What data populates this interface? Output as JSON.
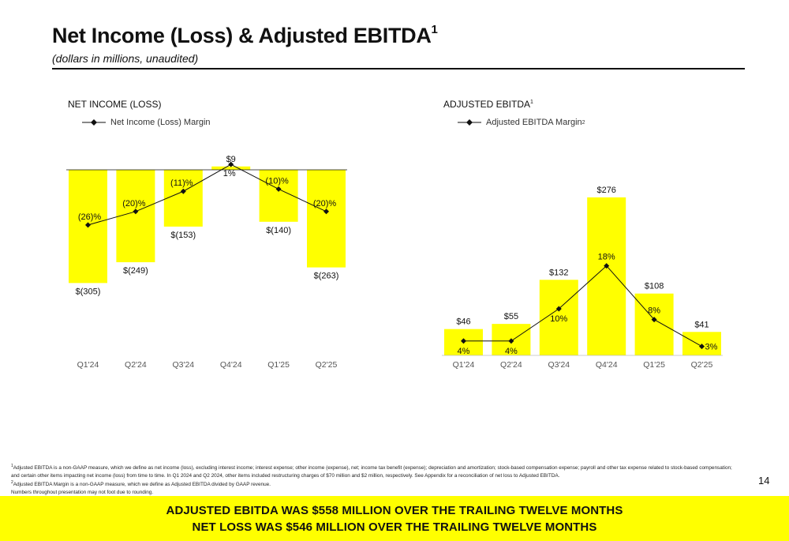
{
  "header": {
    "title": "Net Income (Loss) & Adjusted EBITDA",
    "title_sup": "1",
    "subtitle": "(dollars in millions, unaudited)"
  },
  "colors": {
    "bar": "#FFFF00",
    "line": "#111111",
    "text": "#111111"
  },
  "chart_data": [
    {
      "type": "bar",
      "title": "NET INCOME (LOSS)",
      "title_sup": "",
      "categories": [
        "Q1'24",
        "Q2'24",
        "Q3'24",
        "Q4'24",
        "Q1'25",
        "Q2'25"
      ],
      "values": [
        -305,
        -249,
        -153,
        9,
        -140,
        -263
      ],
      "value_labels": [
        "$(305)",
        "$(249)",
        "$(153)",
        "$9",
        "$(140)",
        "$(263)"
      ],
      "line_series": {
        "name": "Net Income (Loss) Margin",
        "name_sup": "",
        "values": [
          -26,
          -20,
          -11,
          1,
          -10,
          -20
        ],
        "labels": [
          "(26)%",
          "(20)%",
          "(11)%",
          "1%",
          "(10)%",
          "(20)%"
        ]
      }
    },
    {
      "type": "bar",
      "title": "ADJUSTED EBITDA",
      "title_sup": "1",
      "categories": [
        "Q1'24",
        "Q2'24",
        "Q3'24",
        "Q4'24",
        "Q1'25",
        "Q2'25"
      ],
      "values": [
        46,
        55,
        132,
        276,
        108,
        41
      ],
      "value_labels": [
        "$46",
        "$55",
        "$132",
        "$276",
        "$108",
        "$41"
      ],
      "line_series": {
        "name": "Adjusted EBITDA Margin",
        "name_sup": "2",
        "values": [
          4,
          4,
          10,
          18,
          8,
          3
        ],
        "labels": [
          "4%",
          "4%",
          "10%",
          "18%",
          "8%",
          "3%"
        ]
      }
    }
  ],
  "footnotes": {
    "note1_mark": "1",
    "note1": "Adjusted EBITDA is a non-GAAP measure, which we define as net income (loss), excluding interest income; interest expense; other income (expense), net; income tax benefit (expense); depreciation and amortization; stock-based compensation expense; payroll and other tax expense related to stock-based compensation; and certain other items impacting net income (loss) from time to time. In Q1 2024 and Q2 2024, other items included restructuring charges of $70 million and $2 million, respectively. See Appendix for a reconciliation of net loss to Adjusted EBITDA.",
    "note2_mark": "2",
    "note2": "Adjusted EBITDA Margin is a non-GAAP measure, which we define as Adjusted EBITDA divided by GAAP revenue.",
    "note3": "Numbers throughout presentation may not foot due to rounding."
  },
  "page_number": "14",
  "banner": {
    "line1": "ADJUSTED EBITDA WAS $558 MILLION OVER THE TRAILING TWELVE MONTHS",
    "line2": "NET LOSS WAS $546 MILLION OVER THE TRAILING TWELVE MONTHS"
  }
}
